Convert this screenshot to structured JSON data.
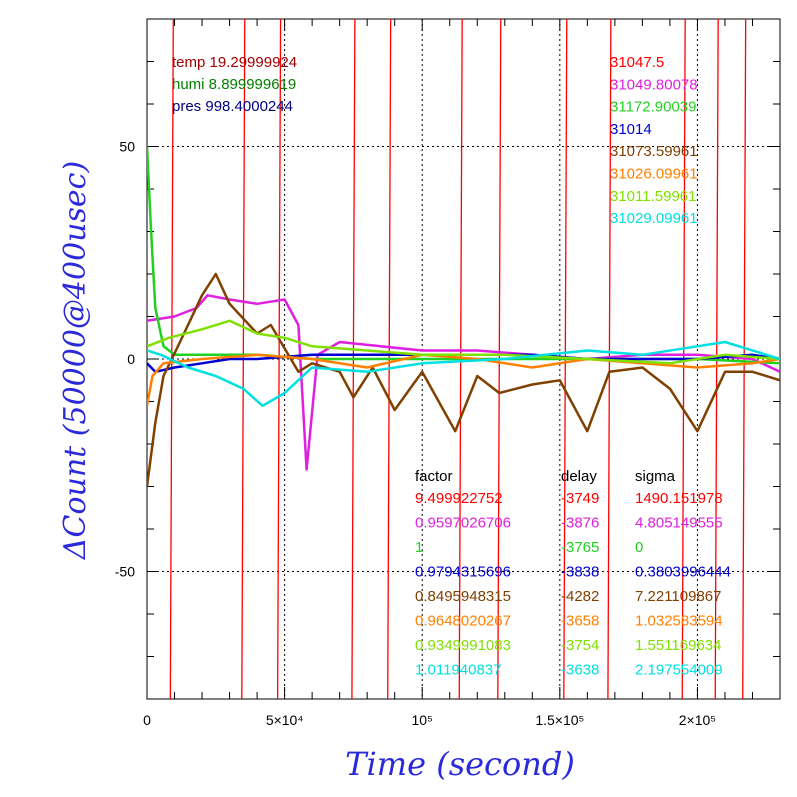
{
  "chart_data": {
    "type": "line",
    "xlabel": "Time (second)",
    "ylabel": "ΔCount (50000@400usec)",
    "xlim": [
      0,
      230000
    ],
    "ylim": [
      -80,
      80
    ],
    "x_ticks": [
      {
        "value": 0,
        "label": "0"
      },
      {
        "value": 50000,
        "label": "5×10⁴"
      },
      {
        "value": 100000,
        "label": "10⁵"
      },
      {
        "value": 150000,
        "label": "1.5×10⁵"
      },
      {
        "value": 200000,
        "label": "2×10⁵"
      }
    ],
    "y_ticks": [
      {
        "value": 50,
        "label": "50"
      },
      {
        "value": 0,
        "label": "0"
      },
      {
        "value": -50,
        "label": "-50"
      }
    ],
    "grid": "dotted lines at labeled ticks",
    "env": [
      {
        "text": "temp 19.29999924",
        "color": "#a00000"
      },
      {
        "text": "humi 8.899999619",
        "color": "#008000"
      },
      {
        "text": "pres 998.4000244",
        "color": "#000080"
      }
    ],
    "counts": [
      {
        "text": "31047.5",
        "color": "#ff0000"
      },
      {
        "text": "31049.80078",
        "color": "#e020e0"
      },
      {
        "text": "31172.90039",
        "color": "#22d022"
      },
      {
        "text": "31014",
        "color": "#0000d0"
      },
      {
        "text": "31073.59961",
        "color": "#804000"
      },
      {
        "text": "31026.09961",
        "color": "#ff8000"
      },
      {
        "text": "31011.59961",
        "color": "#80e000"
      },
      {
        "text": "31029.09961",
        "color": "#00e0e0"
      }
    ],
    "table_headers": {
      "factor": "factor",
      "delay": "delay",
      "sigma": "sigma"
    },
    "table": [
      {
        "factor": "9.499922752",
        "delay": "-3749",
        "sigma": "1490.151978",
        "color": "#ff0000"
      },
      {
        "factor": "0.9597026706",
        "delay": "-3876",
        "sigma": "4.805149555",
        "color": "#e020e0"
      },
      {
        "factor": "1",
        "delay": "-3765",
        "sigma": "0",
        "color": "#22d022"
      },
      {
        "factor": "0.9794315696",
        "delay": "-3838",
        "sigma": "0.3803996444",
        "color": "#0000d0"
      },
      {
        "factor": "0.8495948315",
        "delay": "-4282",
        "sigma": "7.221109867",
        "color": "#804000"
      },
      {
        "factor": "0.9648020267",
        "delay": "-3658",
        "sigma": "1.032583594",
        "color": "#ff8000"
      },
      {
        "factor": "0.9349991083",
        "delay": "-3754",
        "sigma": "1.551169634",
        "color": "#80e000"
      },
      {
        "factor": "1.011940837",
        "delay": "-3638",
        "sigma": "2.197554009",
        "color": "#00e0e0"
      }
    ],
    "series": [
      {
        "color": "#ff0000",
        "kind": "sawtooth",
        "spikes_x": [
          9000,
          35000,
          48000,
          75000,
          88000,
          114000,
          128000,
          152000,
          168000,
          195000,
          207000,
          217000
        ]
      },
      {
        "color": "#e020e0",
        "x": [
          0,
          10000,
          18000,
          22000,
          30000,
          40000,
          50000,
          55000,
          58000,
          62000,
          70000,
          85000,
          100000,
          120000,
          140000,
          160000,
          180000,
          200000,
          220000,
          230000
        ],
        "y": [
          9,
          10,
          12,
          15,
          14,
          13,
          14,
          8,
          -26,
          1,
          4,
          3,
          2,
          2,
          1,
          0,
          1,
          1,
          0,
          -3
        ]
      },
      {
        "color": "#22d022",
        "x": [
          0,
          1500,
          3000,
          6000,
          10000,
          20000,
          40000,
          60000,
          100000,
          150000,
          200000,
          230000
        ],
        "y": [
          50,
          30,
          12,
          3,
          1,
          1,
          1,
          0,
          0,
          0,
          0,
          -1
        ]
      },
      {
        "color": "#0000d0",
        "x": [
          0,
          3000,
          10000,
          20000,
          30000,
          40000,
          60000,
          80000,
          100000,
          120000,
          140000,
          160000,
          180000,
          200000,
          220000,
          230000
        ],
        "y": [
          -1,
          -3,
          -2,
          -1,
          0,
          0,
          1,
          1,
          1,
          1,
          1,
          0,
          0,
          0,
          1,
          0
        ]
      },
      {
        "color": "#804000",
        "x": [
          0,
          3000,
          6000,
          12000,
          20000,
          25000,
          30000,
          40000,
          45000,
          55000,
          60000,
          70000,
          75000,
          82000,
          90000,
          100000,
          112000,
          120000,
          128000,
          140000,
          150000,
          160000,
          168000,
          180000,
          190000,
          200000,
          210000,
          220000,
          230000
        ],
        "y": [
          -30,
          -15,
          -4,
          4,
          15,
          20,
          13,
          6,
          8,
          -3,
          -1,
          -3,
          -9,
          -2,
          -12,
          -3,
          -17,
          -4,
          -8,
          -6,
          -5,
          -17,
          -3,
          -2,
          -7,
          -17,
          -3,
          -3,
          -5
        ]
      },
      {
        "color": "#ff8000",
        "x": [
          0,
          2000,
          6000,
          20000,
          40000,
          60000,
          80000,
          100000,
          120000,
          140000,
          160000,
          180000,
          200000,
          220000,
          230000
        ],
        "y": [
          -11,
          -4,
          -1,
          0,
          1,
          0,
          -2,
          1,
          0,
          -2,
          0,
          -1,
          -2,
          -1,
          0
        ]
      },
      {
        "color": "#80e000",
        "x": [
          0,
          8000,
          20000,
          30000,
          40000,
          50000,
          60000,
          80000,
          100000,
          130000,
          160000,
          190000,
          210000,
          230000
        ],
        "y": [
          3,
          5,
          7,
          9,
          6,
          5,
          3,
          2,
          1,
          1,
          0,
          -1,
          1,
          0
        ]
      },
      {
        "color": "#00e0e0",
        "x": [
          0,
          5000,
          15000,
          25000,
          35000,
          42000,
          50000,
          60000,
          80000,
          100000,
          130000,
          160000,
          180000,
          200000,
          210000,
          230000
        ],
        "y": [
          2,
          1,
          -2,
          -4,
          -7,
          -11,
          -8,
          -2,
          -3,
          -1,
          0,
          2,
          1,
          3,
          4,
          0
        ]
      }
    ]
  }
}
